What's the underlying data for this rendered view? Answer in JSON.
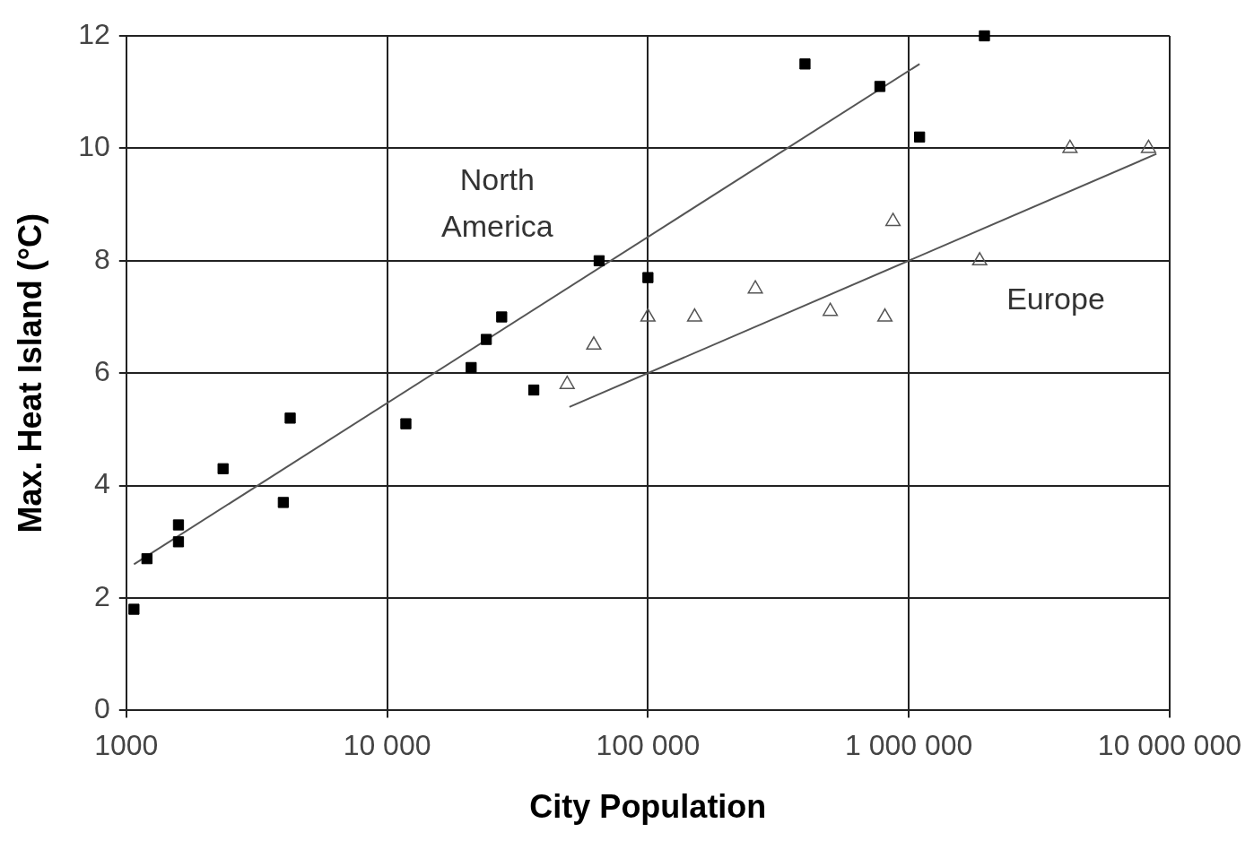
{
  "chart_data": {
    "type": "scatter",
    "xlabel": "City Population",
    "ylabel": "Max. Heat Island (°C)",
    "log": "x",
    "xlim": [
      1000,
      10000000
    ],
    "xticks": [
      {
        "value": 1000,
        "label": "1000"
      },
      {
        "value": 10000,
        "label": "10 000"
      },
      {
        "value": 100000,
        "label": "100 000"
      },
      {
        "value": 1000000,
        "label": "1 000 000"
      },
      {
        "value": 10000000,
        "label": "10 000 000"
      }
    ],
    "ylim": [
      0,
      12
    ],
    "yticks": [
      0,
      2,
      4,
      6,
      8,
      10,
      12
    ],
    "grid": true,
    "legend": false,
    "series": [
      {
        "name": "North America",
        "color": "#000000",
        "marker": "square",
        "x": [
          1070,
          1200,
          1585,
          1585,
          2350,
          4000,
          4250,
          11800,
          21000,
          24000,
          27500,
          36500,
          65000,
          100000,
          400000,
          775000,
          1100000,
          1950000
        ],
        "values": [
          1.8,
          2.7,
          3.3,
          3.0,
          4.3,
          3.7,
          5.2,
          5.1,
          6.1,
          6.6,
          7.0,
          5.7,
          8.0,
          7.7,
          11.5,
          11.1,
          10.2,
          12.0
        ]
      },
      {
        "name": "Europe",
        "color": "#555555",
        "marker": "triangle",
        "x": [
          49000,
          62000,
          100000,
          151000,
          258000,
          500000,
          810000,
          870000,
          1870000,
          4150000,
          8300000
        ],
        "values": [
          5.8,
          6.5,
          7.0,
          7.0,
          7.5,
          7.1,
          7.0,
          8.7,
          8.0,
          10.0,
          10.0
        ]
      },
      {
        "type": "line",
        "color": "#555555",
        "marker": "none",
        "x": [
          1070,
          1100000
        ],
        "values": [
          2.6,
          11.5
        ]
      },
      {
        "type": "line",
        "color": "#555555",
        "marker": "none",
        "x": [
          50000,
          8900000
        ],
        "values": [
          5.4,
          9.9
        ]
      }
    ]
  }
}
